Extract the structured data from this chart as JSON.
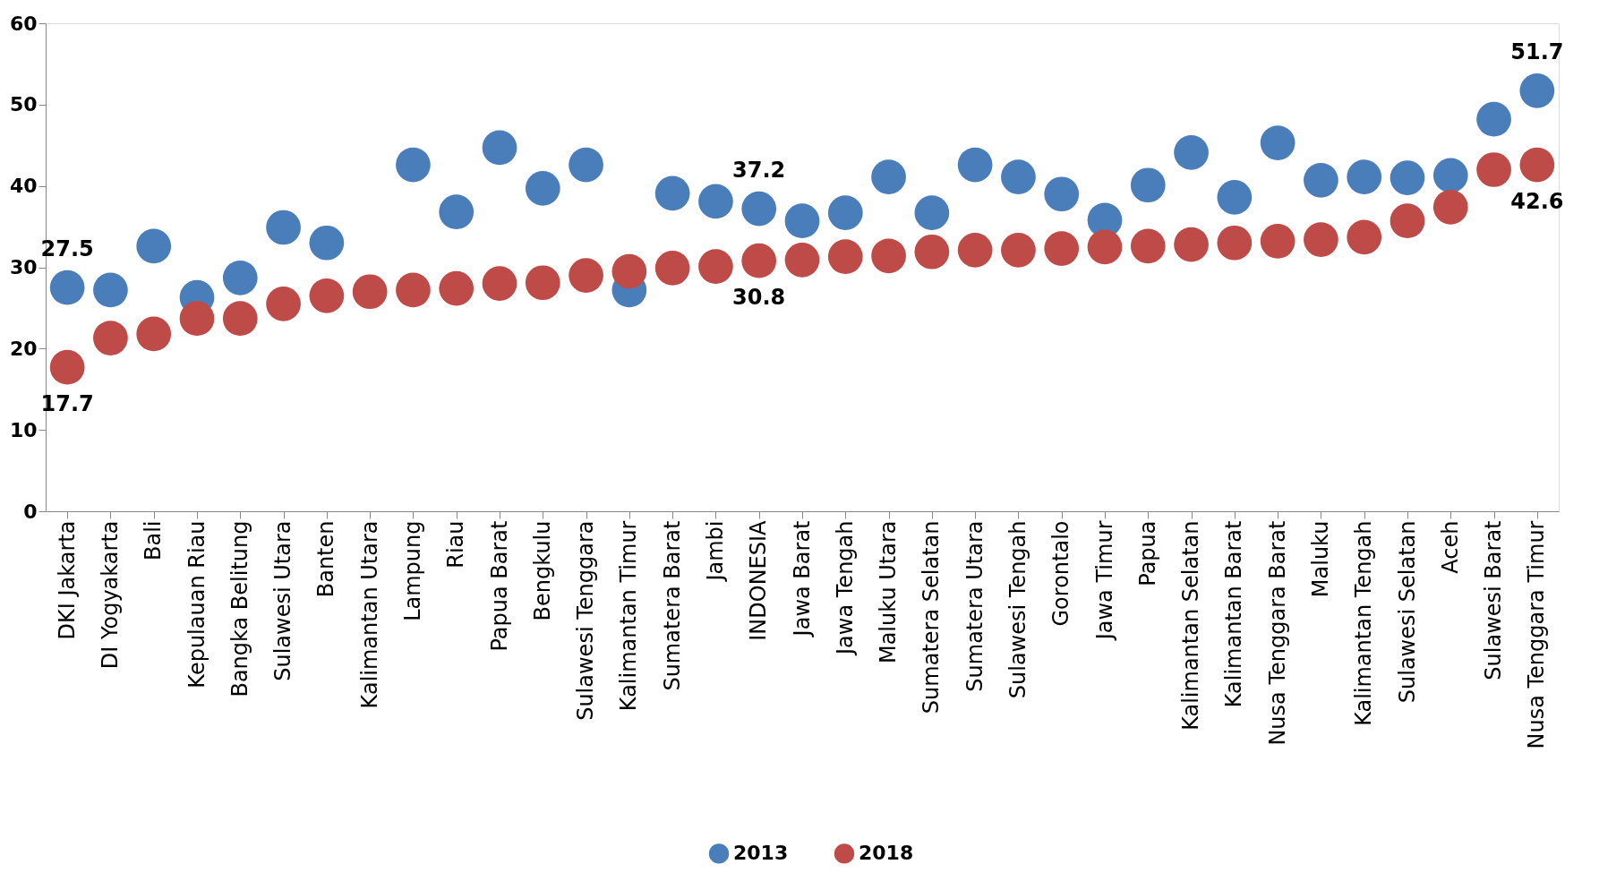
{
  "chart_data": {
    "type": "scatter",
    "categories": [
      "DKI Jakarta",
      "DI Yogyakarta",
      "Bali",
      "Kepulauan Riau",
      "Bangka Belitung",
      "Sulawesi Utara",
      "Banten",
      "Kalimantan Utara",
      "Lampung",
      "Riau",
      "Papua Barat",
      "Bengkulu",
      "Sulawesi Tenggara",
      "Kalimantan Timur",
      "Sumatera Barat",
      "Jambi",
      "INDONESIA",
      "Jawa Barat",
      "Jawa Tengah",
      "Maluku Utara",
      "Sumatera Selatan",
      "Sumatera Utara",
      "Sulawesi Tengah",
      "Gorontalo",
      "Jawa Timur",
      "Papua",
      "Kalimantan Selatan",
      "Kalimantan Barat",
      "Nusa Tenggara Barat",
      "Maluku",
      "Kalimantan Tengah",
      "Sulawesi Selatan",
      "Aceh",
      "Sulawesi Barat",
      "Nusa Tenggara Timur"
    ],
    "series": [
      {
        "name": "2013",
        "color": "#4a7ebb",
        "values": [
          27.5,
          27.2,
          32.6,
          26.3,
          28.7,
          34.9,
          33.0,
          null,
          42.6,
          36.8,
          44.7,
          39.7,
          42.6,
          27.2,
          39.1,
          38.1,
          37.2,
          35.7,
          36.7,
          41.1,
          36.7,
          42.6,
          41.1,
          39.0,
          35.8,
          40.1,
          44.1,
          38.6,
          45.3,
          40.7,
          41.1,
          41.0,
          41.3,
          48.2,
          51.7
        ]
      },
      {
        "name": "2018",
        "color": "#be4b48",
        "values": [
          17.7,
          21.3,
          21.8,
          23.7,
          23.7,
          25.5,
          26.5,
          27.0,
          27.2,
          27.4,
          28.0,
          28.1,
          29.0,
          29.5,
          29.9,
          30.1,
          30.8,
          30.9,
          31.3,
          31.4,
          31.9,
          32.1,
          32.1,
          32.3,
          32.5,
          32.6,
          32.8,
          33.0,
          33.2,
          33.4,
          33.7,
          35.7,
          37.4,
          42.0,
          42.6
        ]
      }
    ],
    "ylim": [
      0,
      60
    ],
    "yticks": [
      0,
      10,
      20,
      30,
      40,
      50,
      60
    ],
    "grid": false,
    "legend": "bottom",
    "marker": "circle",
    "annotations": [
      {
        "text": "27.5",
        "x": "DKI Jakarta",
        "y": 27.5
      },
      {
        "text": "17.7",
        "x": "DKI Jakarta",
        "y": 17.7
      },
      {
        "text": "37.2",
        "x": "INDONESIA",
        "y": 37.2
      },
      {
        "text": "30.8",
        "x": "INDONESIA",
        "y": 30.8
      },
      {
        "text": "51.7",
        "x": "Nusa Tenggara Timur",
        "y": 51.7
      },
      {
        "text": "42.6",
        "x": "Nusa Tenggara Timur",
        "y": 42.6
      }
    ]
  }
}
